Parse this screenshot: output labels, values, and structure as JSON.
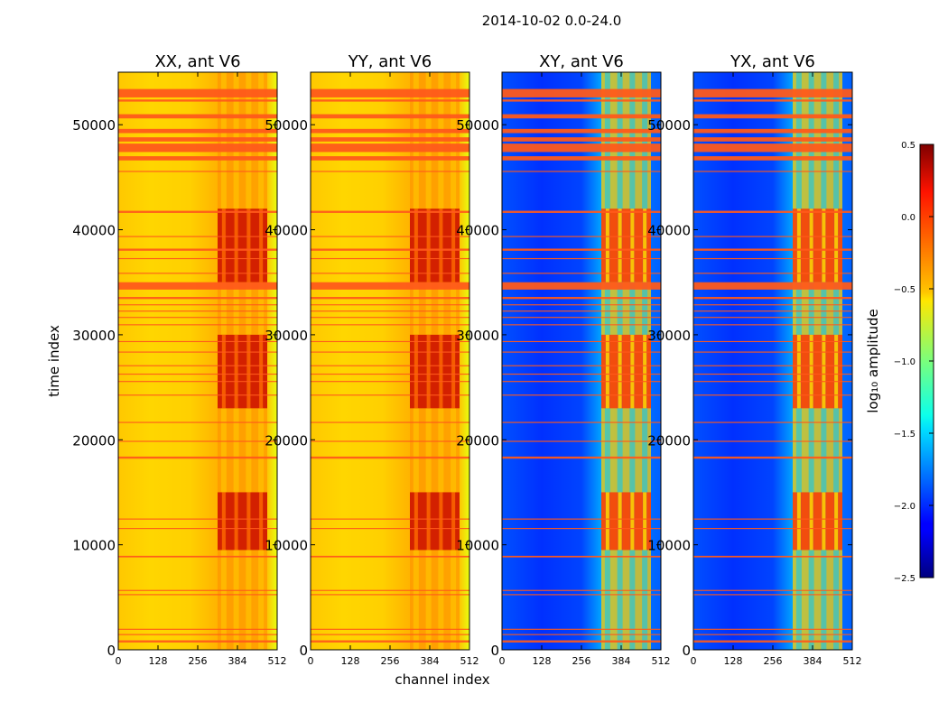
{
  "chart_data": {
    "type": "heatmap",
    "title": "2014-10-02 0.0-24.0",
    "xlabel": "channel index",
    "ylabel": "time index",
    "xlim": [
      0,
      512
    ],
    "ylim": [
      0,
      55000
    ],
    "x_ticks": [
      0,
      128,
      256,
      384,
      512
    ],
    "y_ticks": [
      0,
      10000,
      20000,
      30000,
      40000,
      50000
    ],
    "panels": [
      {
        "title": "XX, ant V6",
        "kind": "parallel"
      },
      {
        "title": "YY, ant V6",
        "kind": "parallel"
      },
      {
        "title": "XY, ant V6",
        "kind": "cross"
      },
      {
        "title": "YX, ant V6",
        "kind": "cross"
      }
    ],
    "flagged_time_ranges": [
      [
        700,
        900
      ],
      [
        1400,
        1500
      ],
      [
        1900,
        2000
      ],
      [
        5200,
        5300
      ],
      [
        5600,
        5700
      ],
      [
        8800,
        8950
      ],
      [
        11500,
        11600
      ],
      [
        12400,
        12500
      ],
      [
        18200,
        18400
      ],
      [
        19800,
        19900
      ],
      [
        21600,
        21700
      ],
      [
        24200,
        24300
      ],
      [
        25500,
        25600
      ],
      [
        26200,
        26300
      ],
      [
        27000,
        27100
      ],
      [
        28300,
        28400
      ],
      [
        29300,
        29400
      ],
      [
        30900,
        31000
      ],
      [
        31600,
        31700
      ],
      [
        32200,
        32300
      ],
      [
        32800,
        32900
      ],
      [
        33400,
        33600
      ],
      [
        34300,
        35000
      ],
      [
        35800,
        35900
      ],
      [
        37200,
        37300
      ],
      [
        38000,
        38200
      ],
      [
        39300,
        39400
      ],
      [
        41600,
        41800
      ],
      [
        45500,
        45600
      ],
      [
        46600,
        47000
      ],
      [
        47400,
        48200
      ],
      [
        48400,
        48800
      ],
      [
        49200,
        49600
      ],
      [
        50600,
        51000
      ],
      [
        52200,
        52400
      ],
      [
        52600,
        53400
      ]
    ],
    "rfi_channel_range": [
      320,
      480
    ],
    "rfi_time_bands": [
      [
        9500,
        15000
      ],
      [
        23000,
        30000
      ],
      [
        35000,
        42000
      ]
    ],
    "colorbar": {
      "label": "log₁₀ amplitude",
      "min": -2.5,
      "max": 0.5,
      "ticks": [
        "0.5",
        "0.0",
        "−0.5",
        "−1.0",
        "−1.5",
        "−2.0",
        "−2.5"
      ]
    }
  }
}
